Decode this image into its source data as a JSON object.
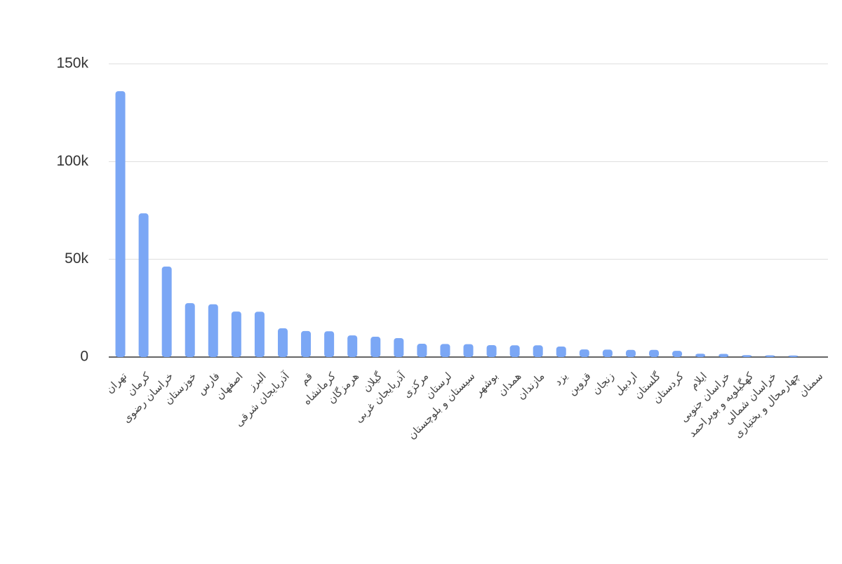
{
  "chart_data": {
    "type": "bar",
    "categories": [
      "تهران",
      "کرمان",
      "خراسان رضوی",
      "خوزستان",
      "فارس",
      "اصفهان",
      "البرز",
      "آذربایجان شرقی",
      "قم",
      "کرمانشاه",
      "هرمزگان",
      "گیلان",
      "آذربایجان غربی",
      "مرکزی",
      "لرستان",
      "سیستان و بلوچستان",
      "بوشهر",
      "همدان",
      "مازندان",
      "یزد",
      "قزوین",
      "زنجان",
      "اردبیل",
      "گلستان",
      "کردستان",
      "ایلام",
      "خراسان جنوبی",
      "کهگیلویه و بویراحمد",
      "خراسان شمالی",
      "چهارمحال و بختیاری",
      "سمنان"
    ],
    "values": [
      136000,
      73500,
      46300,
      27600,
      27000,
      23300,
      23200,
      14700,
      13300,
      13200,
      11100,
      10400,
      9700,
      6800,
      6700,
      6600,
      6100,
      6000,
      6000,
      5400,
      3900,
      3800,
      3700,
      3700,
      3200,
      1700,
      1600,
      1000,
      900,
      800,
      0
    ],
    "color": "#7ba7f5",
    "ylim": [
      0,
      150000
    ],
    "yticks": [
      0,
      {
        "value": 50000,
        "label": "50k"
      },
      {
        "value": 100000,
        "label": "100k"
      },
      {
        "value": 150000,
        "label": "150k"
      }
    ],
    "grid": true
  }
}
